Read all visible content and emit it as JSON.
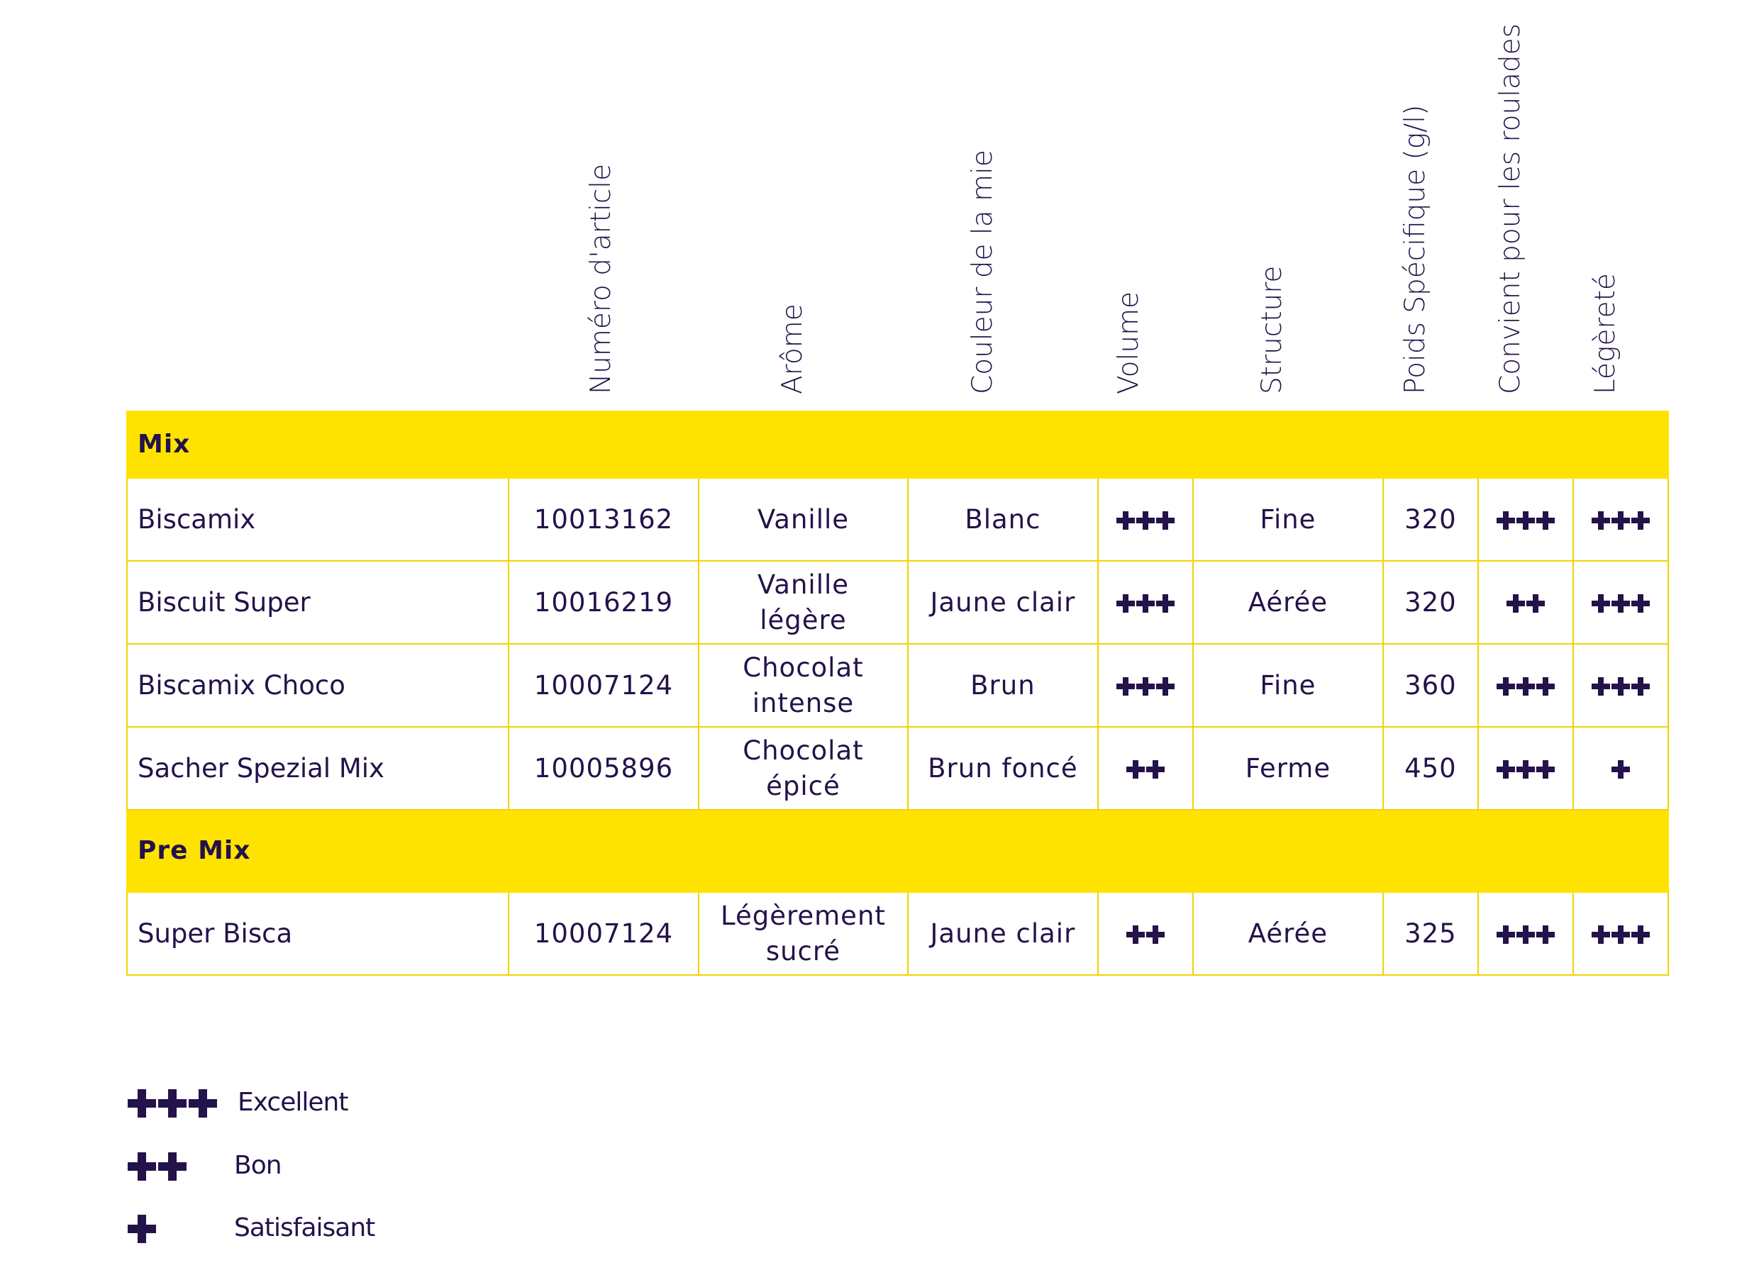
{
  "columns": [
    "Numéro d'article",
    "Arôme",
    "Couleur de la mie",
    "Volume",
    "Structure",
    "Poids Spécifique (g/l)",
    "Convient pour les roulades",
    "Légèreté"
  ],
  "sections": [
    {
      "title": "Mix",
      "rows": [
        {
          "name": "Biscamix",
          "article": "10013162",
          "arome": "Vanille",
          "couleur": "Blanc",
          "volume": 3,
          "structure": "Fine",
          "poids": "320",
          "roulades": 3,
          "legerete": 3
        },
        {
          "name": "Biscuit Super",
          "article": "10016219",
          "arome": "Vanille légère",
          "couleur": "Jaune clair",
          "volume": 3,
          "structure": "Aérée",
          "poids": "320",
          "roulades": 2,
          "legerete": 3
        },
        {
          "name": "Biscamix Choco",
          "article": "10007124",
          "arome": "Chocolat intense",
          "couleur": "Brun",
          "volume": 3,
          "structure": "Fine",
          "poids": "360",
          "roulades": 3,
          "legerete": 3
        },
        {
          "name": "Sacher Spezial Mix",
          "article": "10005896",
          "arome": "Chocolat épicé",
          "couleur": "Brun foncé",
          "volume": 2,
          "structure": "Ferme",
          "poids": "450",
          "roulades": 3,
          "legerete": 1
        }
      ]
    },
    {
      "title": "Pre Mix",
      "rows": [
        {
          "name": "Super Bisca",
          "article": "10007124",
          "arome": "Légèrement sucré",
          "couleur": "Jaune clair",
          "volume": 2,
          "structure": "Aérée",
          "poids": "325",
          "roulades": 3,
          "legerete": 3
        }
      ]
    }
  ],
  "legend": [
    {
      "count": 3,
      "label": "Excellent"
    },
    {
      "count": 2,
      "label": "Bon"
    },
    {
      "count": 1,
      "label": "Satisfaisant"
    }
  ],
  "colors": {
    "accent": "#ffe300",
    "text": "#24124a",
    "border": "#f0d400"
  },
  "icons": {
    "rating": "plus-icon"
  }
}
